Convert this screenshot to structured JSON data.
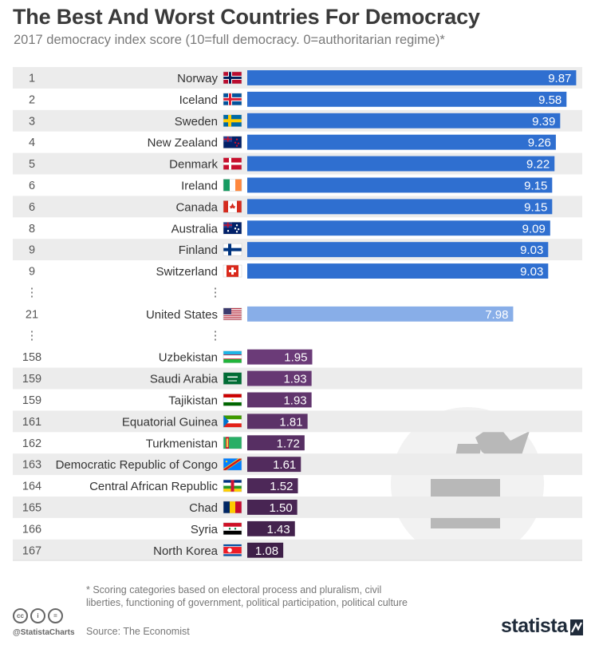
{
  "chart_data": {
    "type": "bar",
    "title": "The Best And Worst Countries For Democracy",
    "subtitle": "2017 democracy index score (10=full democracy. 0=authoritarian regime)*",
    "xlabel": "",
    "ylabel": "",
    "xlim": [
      0,
      10
    ],
    "orientation": "horizontal",
    "gap_marker": "⋮",
    "rows": [
      {
        "rank": "1",
        "country": "Norway",
        "value": 9.87,
        "label": "9.87",
        "group": "best"
      },
      {
        "rank": "2",
        "country": "Iceland",
        "value": 9.58,
        "label": "9.58",
        "group": "best"
      },
      {
        "rank": "3",
        "country": "Sweden",
        "value": 9.39,
        "label": "9.39",
        "group": "best"
      },
      {
        "rank": "4",
        "country": "New Zealand",
        "value": 9.26,
        "label": "9.26",
        "group": "best"
      },
      {
        "rank": "5",
        "country": "Denmark",
        "value": 9.22,
        "label": "9.22",
        "group": "best"
      },
      {
        "rank": "6",
        "country": "Ireland",
        "value": 9.15,
        "label": "9.15",
        "group": "best"
      },
      {
        "rank": "6",
        "country": "Canada",
        "value": 9.15,
        "label": "9.15",
        "group": "best"
      },
      {
        "rank": "8",
        "country": "Australia",
        "value": 9.09,
        "label": "9.09",
        "group": "best"
      },
      {
        "rank": "9",
        "country": "Finland",
        "value": 9.03,
        "label": "9.03",
        "group": "best"
      },
      {
        "rank": "9",
        "country": "Switzerland",
        "value": 9.03,
        "label": "9.03",
        "group": "best"
      },
      {
        "gap": true
      },
      {
        "rank": "21",
        "country": "United States",
        "value": 7.98,
        "label": "7.98",
        "group": "us"
      },
      {
        "gap": true
      },
      {
        "rank": "158",
        "country": "Uzbekistan",
        "value": 1.95,
        "label": "1.95",
        "group": "worst"
      },
      {
        "rank": "159",
        "country": "Saudi Arabia",
        "value": 1.93,
        "label": "1.93",
        "group": "worst"
      },
      {
        "rank": "159",
        "country": "Tajikistan",
        "value": 1.93,
        "label": "1.93",
        "group": "worst"
      },
      {
        "rank": "161",
        "country": "Equatorial Guinea",
        "value": 1.81,
        "label": "1.81",
        "group": "worst"
      },
      {
        "rank": "162",
        "country": "Turkmenistan",
        "value": 1.72,
        "label": "1.72",
        "group": "worst"
      },
      {
        "rank": "163",
        "country": "Democratic Republic of Congo",
        "value": 1.61,
        "label": "1.61",
        "group": "worst"
      },
      {
        "rank": "164",
        "country": "Central African Republic",
        "value": 1.52,
        "label": "1.52",
        "group": "worst"
      },
      {
        "rank": "165",
        "country": "Chad",
        "value": 1.5,
        "label": "1.50",
        "group": "worst"
      },
      {
        "rank": "166",
        "country": "Syria",
        "value": 1.43,
        "label": "1.43",
        "group": "worst"
      },
      {
        "rank": "167",
        "country": "North Korea",
        "value": 1.08,
        "label": "1.08",
        "group": "worst"
      }
    ],
    "colors": {
      "best": "#2f6fd0",
      "us": "#88aee8",
      "worst_light": "#6b3b78",
      "worst_dark": "#3e1f48",
      "row_stripe": "#ececec",
      "ballot_circle": "#f2f2f2",
      "ballot_icon": "#b8b8b8"
    },
    "flag_icons": [
      "norway-flag-icon",
      "iceland-flag-icon",
      "sweden-flag-icon",
      "new-zealand-flag-icon",
      "denmark-flag-icon",
      "ireland-flag-icon",
      "canada-flag-icon",
      "australia-flag-icon",
      "finland-flag-icon",
      "switzerland-flag-icon",
      "united-states-flag-icon",
      "uzbekistan-flag-icon",
      "saudi-arabia-flag-icon",
      "tajikistan-flag-icon",
      "equatorial-guinea-flag-icon",
      "turkmenistan-flag-icon",
      "dr-congo-flag-icon",
      "central-african-republic-flag-icon",
      "chad-flag-icon",
      "syria-flag-icon",
      "north-korea-flag-icon"
    ]
  },
  "footer": {
    "footnote": "* Scoring categories based on electoral process and pluralism, civil liberties, functioning of government, political participation, political culture",
    "source": "Source: The Economist",
    "handle": "@StatistaCharts",
    "logo": "statista",
    "license_icons": [
      "cc-icon",
      "by-icon",
      "nd-icon"
    ],
    "license_glyphs": [
      "cc",
      "i",
      "="
    ]
  }
}
